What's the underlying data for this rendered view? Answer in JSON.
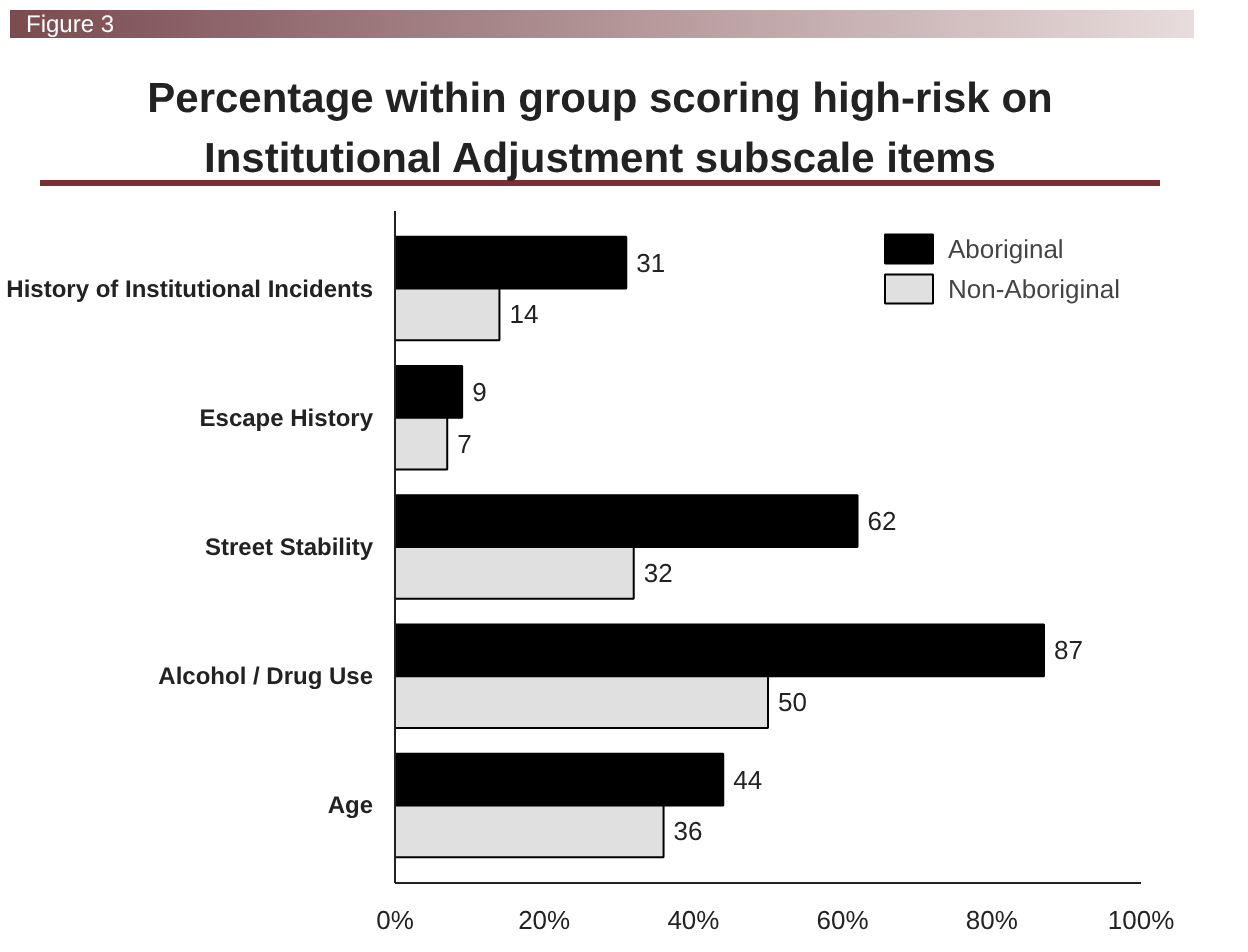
{
  "chart_data": {
    "type": "bar",
    "orientation": "horizontal",
    "title": "Percentage within group scoring high-risk on Institutional Adjustment subscale items",
    "annotations": [
      "Figure 3"
    ],
    "categories": [
      "History of Institutional Incidents",
      "Escape History",
      "Street Stability",
      "Alcohol / Drug Use",
      "Age"
    ],
    "series": [
      {
        "name": "Aboriginal",
        "color": "#000000",
        "values": [
          31,
          9,
          62,
          87,
          44
        ]
      },
      {
        "name": "Non-Aboriginal",
        "color": "#e0e0e0",
        "values": [
          14,
          7,
          32,
          50,
          36
        ]
      }
    ],
    "xlim": [
      0,
      100
    ],
    "xticks": [
      {
        "value": 0,
        "label": "0%"
      },
      {
        "value": 20,
        "label": "20%"
      },
      {
        "value": 40,
        "label": "40%"
      },
      {
        "value": 60,
        "label": "60%"
      },
      {
        "value": 80,
        "label": "80%"
      },
      {
        "value": 100,
        "label": "100%"
      }
    ],
    "data_labels": true,
    "grid": false,
    "legend": "top right"
  }
}
